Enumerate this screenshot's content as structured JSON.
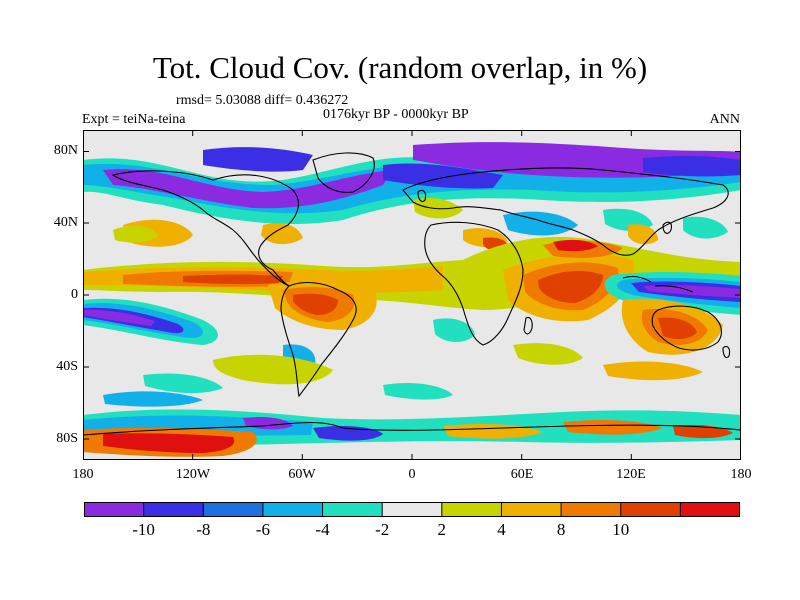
{
  "figure": {
    "title": "Tot. Cloud Cov. (random overlap, in %)",
    "rmsd_text": "rmsd= 5.03088 diff= 0.436272",
    "period_text": "0176kyr BP - 0000kyr BP",
    "experiment_text": "Expt = teiNa-teina",
    "season_text": "ANN"
  },
  "map": {
    "projection": "cylindrical equidistant",
    "lat_ticks": [
      "80N",
      "40N",
      "0",
      "40S",
      "80S"
    ],
    "lon_ticks": [
      "180",
      "120W",
      "60W",
      "0",
      "60E",
      "120E",
      "180"
    ]
  },
  "colorbar": {
    "colors": [
      "#8a2be2",
      "#3b2fe6",
      "#1e6fe0",
      "#12b0e8",
      "#20e0c0",
      "#e8e8e8",
      "#c8d400",
      "#f0b000",
      "#f07a00",
      "#e04000",
      "#e01010"
    ],
    "labels": [
      "-10",
      "-8",
      "-6",
      "-4",
      "-2",
      "2",
      "4",
      "8",
      "10"
    ]
  }
}
